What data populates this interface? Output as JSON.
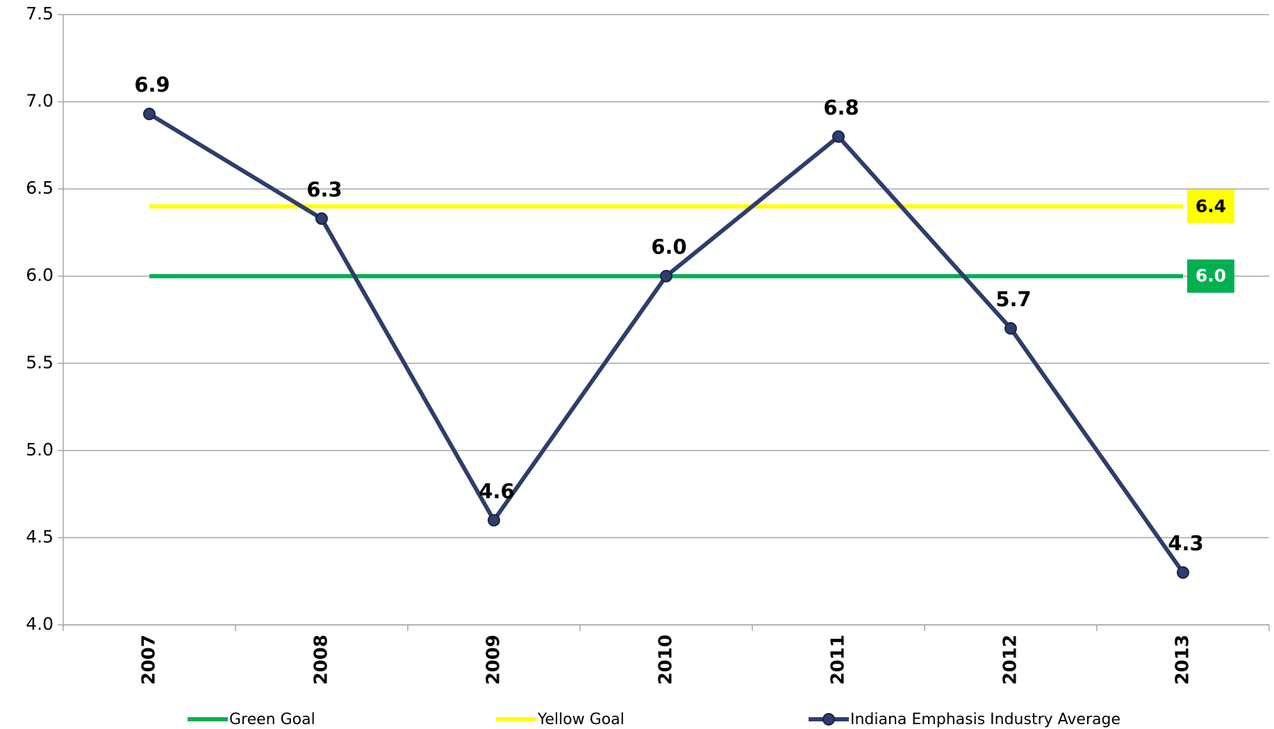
{
  "chart_data": {
    "type": "line",
    "categories": [
      "2007",
      "2008",
      "2009",
      "2010",
      "2011",
      "2012",
      "2013"
    ],
    "series": [
      {
        "name": "Green Goal",
        "color": "#00b050",
        "values": [
          6,
          6,
          6,
          6,
          6,
          6,
          6
        ],
        "value_labels": [
          null,
          null,
          null,
          null,
          null,
          null,
          "6.0"
        ],
        "label_text_color": "#ffffff"
      },
      {
        "name": "Yellow Goal",
        "color": "#ffff00",
        "values": [
          6.4,
          6.4,
          6.4,
          6.4,
          6.4,
          6.4,
          6.4
        ],
        "value_labels": [
          null,
          null,
          null,
          null,
          null,
          null,
          "6.4"
        ],
        "label_text_color": "#000000"
      },
      {
        "name": "Indiana Emphasis Industry Average",
        "color": "#2e3d6b",
        "markers": true,
        "values": [
          6.93,
          6.33,
          4.6,
          6.0,
          6.8,
          5.7,
          4.3
        ],
        "value_labels": [
          "6.9",
          "6.3",
          "4.6",
          "6.0",
          "6.8",
          "5.7",
          "4.3"
        ]
      }
    ],
    "ylim": [
      4,
      7.5
    ],
    "yticks": [
      {
        "value": 4,
        "label": "4.0"
      },
      4.5,
      {
        "value": 5,
        "label": "5.0"
      },
      5.5,
      {
        "value": 6,
        "label": "6.0"
      },
      6.5,
      {
        "value": 7,
        "label": "7.0"
      },
      7.5
    ],
    "grid": true,
    "legend": "bottom"
  }
}
